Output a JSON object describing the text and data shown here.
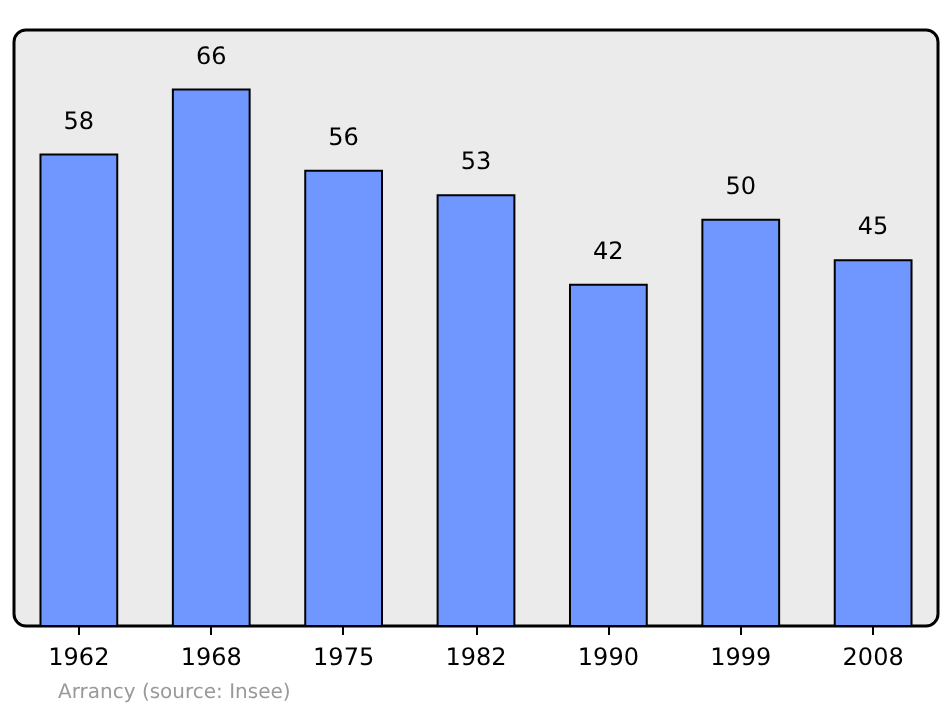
{
  "chart_data": {
    "type": "bar",
    "categories": [
      "1962",
      "1968",
      "1975",
      "1982",
      "1990",
      "1999",
      "2008"
    ],
    "values": [
      58,
      66,
      56,
      53,
      42,
      50,
      45
    ],
    "color": "#7097ff",
    "data_labels": true,
    "annotations": [
      "Arrancy   (source: Insee)"
    ]
  }
}
